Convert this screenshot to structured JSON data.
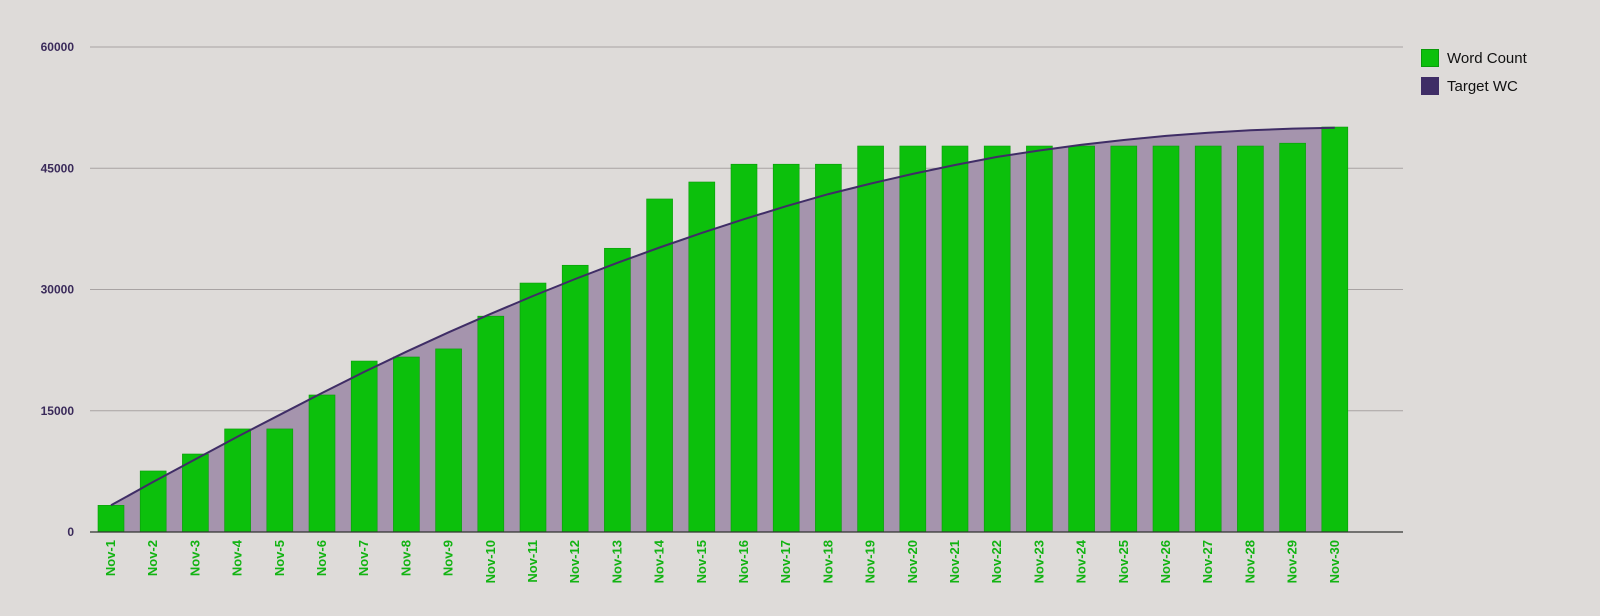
{
  "chart_data": {
    "type": "bar",
    "title": "",
    "xlabel": "",
    "ylabel": "",
    "ylim": [
      0,
      60000
    ],
    "yticks": [
      0,
      15000,
      30000,
      45000,
      60000
    ],
    "grid": true,
    "legend_position": "right",
    "categories": [
      "Nov-1",
      "Nov-2",
      "Nov-3",
      "Nov-4",
      "Nov-5",
      "Nov-6",
      "Nov-7",
      "Nov-8",
      "Nov-9",
      "Nov-10",
      "Nov-11",
      "Nov-12",
      "Nov-13",
      "Nov-14",
      "Nov-15",
      "Nov-16",
      "Nov-17",
      "Nov-18",
      "Nov-19",
      "Nov-20",
      "Nov-21",
      "Nov-22",
      "Nov-23",
      "Nov-24",
      "Nov-25",
      "Nov-26",
      "Nov-27",
      "Nov-28",
      "Nov-29",
      "Nov-30"
    ],
    "series": [
      {
        "name": "Word Count",
        "type": "bar",
        "color": "#0cc00c",
        "values": [
          3300,
          7550,
          9650,
          12750,
          12750,
          16950,
          21150,
          21650,
          22650,
          26700,
          30800,
          33000,
          35100,
          41200,
          43300,
          45500,
          45500,
          45500,
          47750,
          47750,
          47750,
          47750,
          47750,
          47750,
          47750,
          47750,
          47750,
          47750,
          48100,
          50100
        ]
      },
      {
        "name": "Target WC",
        "type": "area",
        "color": "#3f2d66",
        "fill": "#a594ad",
        "values": [
          3300,
          6200,
          9000,
          11800,
          14500,
          17200,
          19800,
          22300,
          24700,
          27000,
          29200,
          31300,
          33300,
          35200,
          37000,
          38700,
          40300,
          41800,
          43100,
          44300,
          45400,
          46400,
          47200,
          47900,
          48500,
          49000,
          49400,
          49700,
          49900,
          50000
        ]
      }
    ]
  },
  "legend": {
    "items": [
      {
        "label": "Word Count",
        "color": "#0cc00c"
      },
      {
        "label": "Target WC",
        "color": "#3f2d66"
      }
    ]
  }
}
